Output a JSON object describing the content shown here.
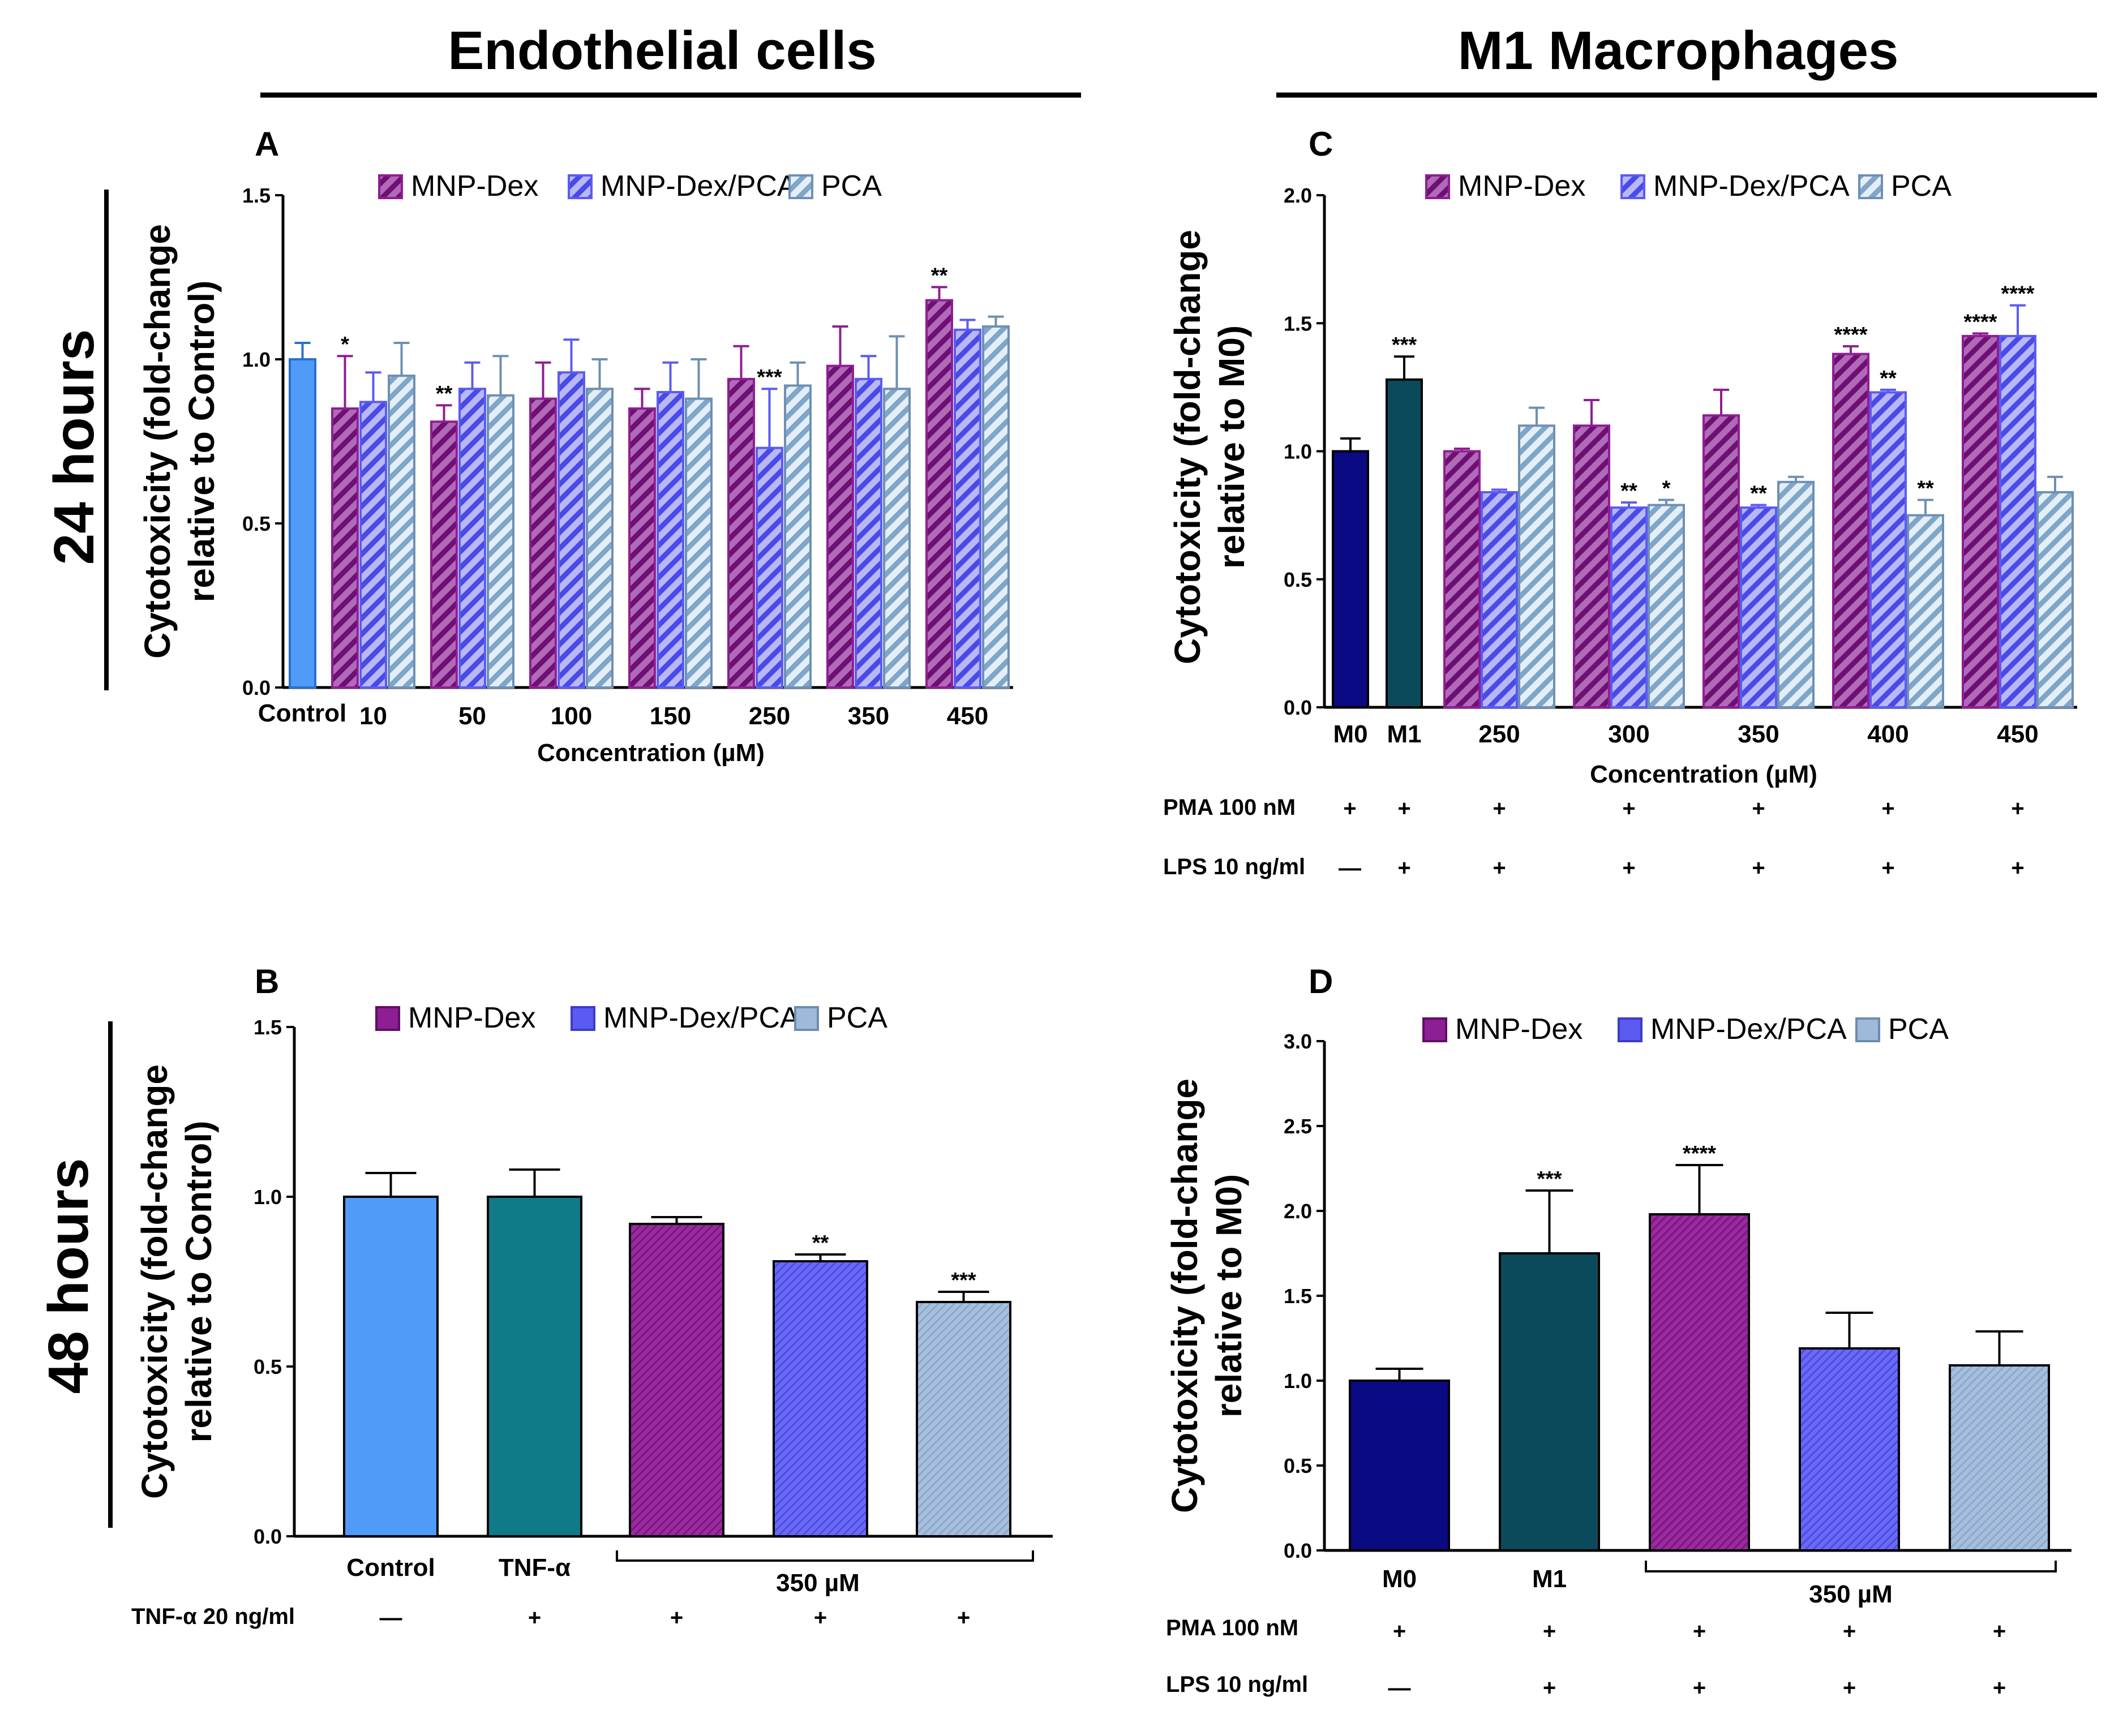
{
  "headers": {
    "left": "Endothelial cells",
    "right": "M1 Macrophages"
  },
  "time_labels": {
    "top": "24 hours",
    "bottom": "48 hours"
  },
  "legend_labels": [
    "MNP-Dex",
    "MNP-Dex/PCA",
    "PCA"
  ],
  "colors": {
    "mnp_dex": "#8e1e93",
    "mnp_dex_pca": "#5b5bf2",
    "pca": "#9fbad8",
    "control": "#4f9bf7",
    "tnf": "#0f7b88",
    "m0": "#0a0a82",
    "m1": "#0b4a5a"
  },
  "chart_data": [
    {
      "panel": "A",
      "type": "bar",
      "ylabel": "Cytotoxicity (fold-change relative to Control)",
      "ylim": [
        0,
        1.5
      ],
      "yticks": [
        "0.0",
        "0.5",
        "1.0",
        "1.5"
      ],
      "xlabel": "Concentration (µM)",
      "control": {
        "label": "Control",
        "value": 1.0,
        "err": 0.05
      },
      "categories": [
        "10",
        "50",
        "100",
        "150",
        "250",
        "350",
        "450"
      ],
      "series": [
        {
          "name": "MNP-Dex",
          "values": [
            0.85,
            0.81,
            0.88,
            0.85,
            0.94,
            0.98,
            1.18
          ],
          "errors": [
            0.16,
            0.05,
            0.11,
            0.06,
            0.1,
            0.12,
            0.04
          ],
          "sig": [
            "*",
            "**",
            "",
            "",
            "",
            "",
            "**"
          ]
        },
        {
          "name": "MNP-Dex/PCA",
          "values": [
            0.87,
            0.91,
            0.96,
            0.9,
            0.73,
            0.94,
            1.09
          ],
          "errors": [
            0.09,
            0.08,
            0.1,
            0.09,
            0.18,
            0.07,
            0.03
          ],
          "sig": [
            "",
            "",
            "",
            "",
            "***",
            "",
            ""
          ]
        },
        {
          "name": "PCA",
          "values": [
            0.95,
            0.89,
            0.91,
            0.88,
            0.92,
            0.91,
            1.1
          ],
          "errors": [
            0.1,
            0.12,
            0.09,
            0.12,
            0.07,
            0.16,
            0.03
          ],
          "sig": [
            "",
            "",
            "",
            "",
            "",
            "",
            ""
          ]
        }
      ]
    },
    {
      "panel": "B",
      "type": "bar",
      "ylabel": "Cytotoxicity (fold-change relative to Control)",
      "ylim": [
        0,
        1.5
      ],
      "yticks": [
        "0.0",
        "0.5",
        "1.0",
        "1.5"
      ],
      "bars": [
        {
          "label": "Control",
          "value": 1.0,
          "err": 0.07,
          "sig": ""
        },
        {
          "label": "TNF-α",
          "value": 1.0,
          "err": 0.08,
          "sig": ""
        },
        {
          "label": "MNP-Dex",
          "value": 0.92,
          "err": 0.02,
          "sig": ""
        },
        {
          "label": "MNP-Dex/PCA",
          "value": 0.81,
          "err": 0.02,
          "sig": "**"
        },
        {
          "label": "PCA",
          "value": 0.69,
          "err": 0.03,
          "sig": "***"
        }
      ],
      "bracket_label": "350 µM",
      "treatment": {
        "label": "TNF-α 20 ng/ml",
        "marks": [
          "—",
          "+",
          "+",
          "+",
          "+"
        ]
      }
    },
    {
      "panel": "C",
      "type": "bar",
      "ylabel": "Cytotoxicity (fold-change relative to M0)",
      "ylim": [
        0,
        2.0
      ],
      "yticks": [
        "0.0",
        "0.5",
        "1.0",
        "1.5",
        "2.0"
      ],
      "xlabel": "Concentration (µM)",
      "controls": [
        {
          "label": "M0",
          "value": 1.0,
          "err": 0.05,
          "sig": ""
        },
        {
          "label": "M1",
          "value": 1.28,
          "err": 0.09,
          "sig": "***"
        }
      ],
      "categories": [
        "250",
        "300",
        "350",
        "400",
        "450"
      ],
      "series": [
        {
          "name": "MNP-Dex",
          "values": [
            1.0,
            1.1,
            1.14,
            1.38,
            1.45
          ],
          "errors": [
            0.01,
            0.1,
            0.1,
            0.03,
            0.01
          ],
          "sig": [
            "",
            "",
            "",
            "****",
            "****"
          ]
        },
        {
          "name": "MNP-Dex/PCA",
          "values": [
            0.84,
            0.78,
            0.78,
            1.23,
            1.45
          ],
          "errors": [
            0.01,
            0.02,
            0.01,
            0.01,
            0.12
          ],
          "sig": [
            "",
            "**",
            "**",
            "**",
            "****"
          ]
        },
        {
          "name": "PCA",
          "values": [
            1.1,
            0.79,
            0.88,
            0.75,
            0.84
          ],
          "errors": [
            0.07,
            0.02,
            0.02,
            0.06,
            0.06
          ],
          "sig": [
            "",
            "*",
            "",
            "**",
            ""
          ]
        }
      ],
      "treatments": [
        {
          "label": "PMA 100 nM",
          "marks": [
            "+",
            "+",
            "+",
            "+",
            "+",
            "+",
            "+"
          ]
        },
        {
          "label": "LPS 10 ng/ml",
          "marks": [
            "—",
            "+",
            "+",
            "+",
            "+",
            "+",
            "+"
          ]
        }
      ]
    },
    {
      "panel": "D",
      "type": "bar",
      "ylabel": "Cytotoxicity (fold-change relative to M0)",
      "ylim": [
        0,
        3.0
      ],
      "yticks": [
        "0.0",
        "0.5",
        "1.0",
        "1.5",
        "2.0",
        "2.5",
        "3.0"
      ],
      "bars": [
        {
          "label": "M0",
          "value": 1.0,
          "err": 0.07,
          "sig": ""
        },
        {
          "label": "M1",
          "value": 1.75,
          "err": 0.37,
          "sig": "***"
        },
        {
          "label": "MNP-Dex",
          "value": 1.98,
          "err": 0.29,
          "sig": "****"
        },
        {
          "label": "MNP-Dex/PCA",
          "value": 1.19,
          "err": 0.21,
          "sig": ""
        },
        {
          "label": "PCA",
          "value": 1.09,
          "err": 0.2,
          "sig": ""
        }
      ],
      "bracket_label": "350 µM",
      "treatments": [
        {
          "label": "PMA 100 nM",
          "marks": [
            "+",
            "+",
            "+",
            "+",
            "+"
          ]
        },
        {
          "label": "LPS 10 ng/ml",
          "marks": [
            "—",
            "+",
            "+",
            "+",
            "+"
          ]
        }
      ]
    }
  ]
}
